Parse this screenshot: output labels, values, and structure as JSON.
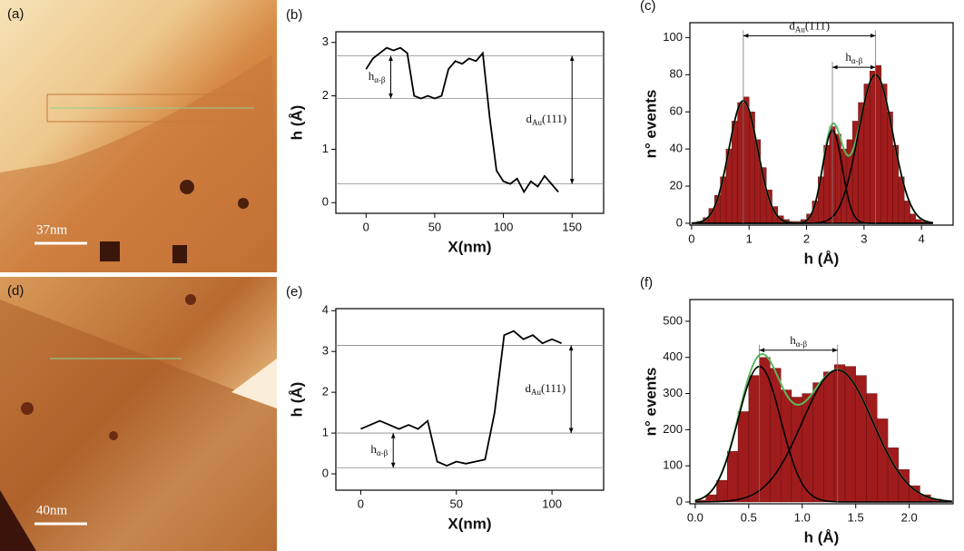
{
  "images": [
    {
      "label": "(a)",
      "scale_bar": "37nm"
    },
    {
      "label": "(d)",
      "scale_bar": "40nm"
    }
  ],
  "chart_data": [
    {
      "type": "line",
      "label": "(b)",
      "xlabel": "X(nm)",
      "ylabel": "h (Å)",
      "color": "#000",
      "x": [
        0,
        5,
        10,
        15,
        20,
        25,
        30,
        35,
        40,
        45,
        50,
        55,
        60,
        65,
        70,
        75,
        80,
        85,
        90,
        95,
        100,
        105,
        110,
        115,
        120,
        125,
        130,
        135,
        140
      ],
      "values": [
        2.5,
        2.7,
        2.8,
        2.9,
        2.85,
        2.9,
        2.8,
        2.0,
        1.95,
        2.0,
        1.95,
        2.0,
        2.5,
        2.65,
        2.6,
        2.7,
        2.65,
        2.8,
        1.6,
        0.6,
        0.4,
        0.35,
        0.45,
        0.2,
        0.4,
        0.3,
        0.5,
        0.35,
        0.2
      ],
      "xlim": [
        -22,
        173
      ],
      "ylim": [
        -0.2,
        3.2
      ],
      "xticks": [
        0,
        50,
        100,
        150
      ],
      "yticks": [
        0,
        1,
        2,
        3
      ],
      "hlines": [
        2.75,
        1.95,
        0.35
      ],
      "annotations": [
        {
          "text": "h",
          "sub": "α-β",
          "x": 18,
          "y1": 2.75,
          "y2": 1.95
        },
        {
          "text": "d",
          "sub": "Au",
          "suffix": "(111)",
          "x": 150,
          "y1": 2.75,
          "y2": 0.35
        }
      ]
    },
    {
      "type": "histogram",
      "label": "(c)",
      "xlabel": "h (Å)",
      "ylabel": "n° events",
      "color": "#a01c1c",
      "bins": [
        0,
        0.1,
        0.2,
        0.3,
        0.4,
        0.5,
        0.6,
        0.7,
        0.8,
        0.9,
        1.0,
        1.1,
        1.2,
        1.3,
        1.4,
        1.5,
        1.6,
        1.7,
        1.8,
        1.9,
        2.0,
        2.1,
        2.2,
        2.3,
        2.4,
        2.5,
        2.6,
        2.7,
        2.8,
        2.9,
        3.0,
        3.1,
        3.2,
        3.3,
        3.4,
        3.5,
        3.6,
        3.7,
        3.8,
        3.9,
        4.0,
        4.1,
        4.2
      ],
      "values": [
        0,
        1,
        3,
        8,
        15,
        25,
        40,
        55,
        65,
        68,
        60,
        45,
        30,
        18,
        9,
        4,
        2,
        1,
        1,
        2,
        5,
        12,
        25,
        42,
        52,
        48,
        40,
        45,
        55,
        65,
        75,
        82,
        85,
        75,
        60,
        42,
        25,
        12,
        5,
        2,
        1,
        0
      ],
      "xlim": [
        -0.03,
        4.55
      ],
      "ylim": [
        -1,
        108
      ],
      "xticks": [
        0,
        1,
        2,
        3,
        4
      ],
      "yticks": [
        0,
        20,
        40,
        60,
        80,
        100
      ],
      "fits": [
        {
          "center": 0.9,
          "amplitude": 66,
          "sigma": 0.25,
          "color": "#000"
        },
        {
          "center": 2.45,
          "amplitude": 50,
          "sigma": 0.17,
          "color": "#000"
        },
        {
          "center": 3.2,
          "amplitude": 80,
          "sigma": 0.3,
          "color": "#000"
        }
      ],
      "envelope_color": "#5cb85c",
      "annotations": [
        {
          "text": "d",
          "sub": "Au",
          "suffix": "(111)",
          "y": 101,
          "x1": 0.9,
          "x2": 3.2
        },
        {
          "text": "h",
          "sub": "α-β",
          "y": 84,
          "x1": 2.45,
          "x2": 3.2
        }
      ]
    },
    {
      "type": "line",
      "label": "(e)",
      "xlabel": "X(nm)",
      "ylabel": "h (Å)",
      "color": "#000",
      "x": [
        0,
        5,
        10,
        15,
        20,
        25,
        30,
        35,
        40,
        45,
        50,
        55,
        60,
        65,
        70,
        75,
        80,
        85,
        90,
        95,
        100,
        105
      ],
      "values": [
        1.1,
        1.2,
        1.3,
        1.2,
        1.1,
        1.2,
        1.1,
        1.3,
        0.3,
        0.2,
        0.3,
        0.25,
        0.3,
        0.35,
        1.5,
        3.4,
        3.5,
        3.3,
        3.4,
        3.2,
        3.3,
        3.2
      ],
      "xlim": [
        -13,
        127
      ],
      "ylim": [
        -0.4,
        4.05
      ],
      "xticks": [
        0,
        50,
        100
      ],
      "yticks": [
        0,
        1,
        2,
        3,
        4
      ],
      "hlines": [
        3.15,
        1.0,
        0.15
      ],
      "annotations": [
        {
          "text": "h",
          "sub": "α-β",
          "x": 17,
          "y1": 1.0,
          "y2": 0.15
        },
        {
          "text": "d",
          "sub": "Au",
          "suffix": "(111)",
          "x": 110,
          "y1": 3.15,
          "y2": 1.0
        }
      ]
    },
    {
      "type": "histogram",
      "label": "(f)",
      "xlabel": "h (Å)",
      "ylabel": "n° events",
      "color": "#a01c1c",
      "bins": [
        0,
        0.1,
        0.2,
        0.3,
        0.4,
        0.5,
        0.6,
        0.7,
        0.8,
        0.9,
        1.0,
        1.1,
        1.2,
        1.3,
        1.4,
        1.5,
        1.6,
        1.7,
        1.8,
        1.9,
        2.0,
        2.1,
        2.2,
        2.3,
        2.4
      ],
      "values": [
        5,
        20,
        60,
        140,
        250,
        350,
        400,
        370,
        310,
        290,
        300,
        330,
        360,
        380,
        375,
        350,
        300,
        230,
        150,
        90,
        45,
        20,
        8,
        3
      ],
      "xlim": [
        -0.05,
        2.41
      ],
      "ylim": [
        -5,
        560
      ],
      "xticks": [
        {
          "value": 0,
          "label": "0.0"
        },
        0.5,
        {
          "value": 1,
          "label": "1.0"
        },
        1.5,
        {
          "value": 2,
          "label": "2.0"
        }
      ],
      "yticks": [
        0,
        100,
        200,
        300,
        400,
        500
      ],
      "fits": [
        {
          "center": 0.6,
          "amplitude": 375,
          "sigma": 0.2,
          "color": "#000"
        },
        {
          "center": 1.33,
          "amplitude": 365,
          "sigma": 0.33,
          "color": "#000"
        }
      ],
      "envelope_color": "#5cb85c",
      "annotations": [
        {
          "text": "h",
          "sub": "α-β",
          "y": 420,
          "x1": 0.6,
          "x2": 1.33
        }
      ]
    }
  ]
}
